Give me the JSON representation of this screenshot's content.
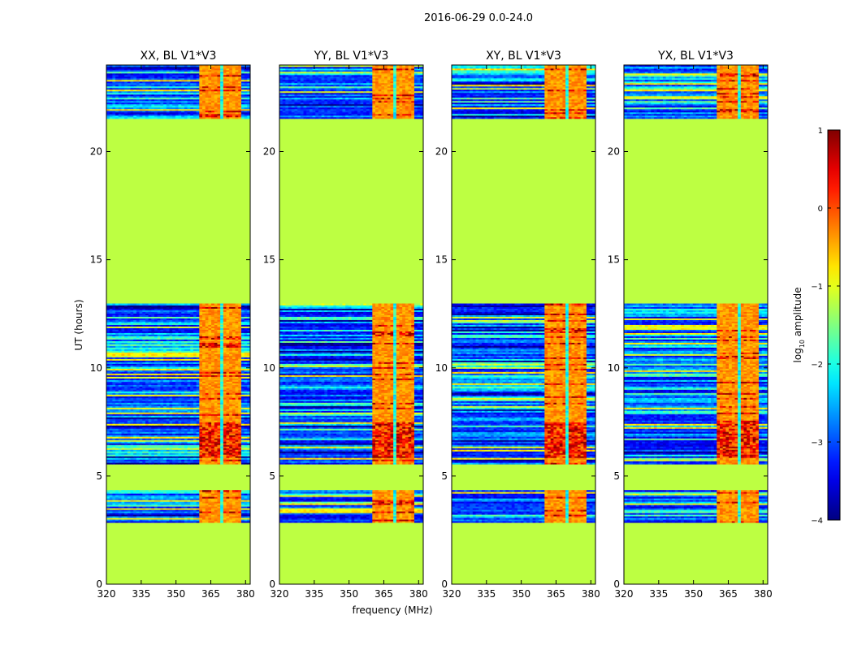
{
  "chart_data": {
    "type": "heatmap",
    "suptitle": "2016-06-29 0.0-24.0",
    "xlabel": "frequency (MHz)",
    "ylabel": "UT (hours)",
    "xlim": [
      320,
      382
    ],
    "ylim": [
      0,
      24
    ],
    "xticks": [
      320,
      335,
      350,
      365,
      380
    ],
    "yticks": [
      0,
      5,
      10,
      15,
      20
    ],
    "panels": [
      {
        "title": "XX, BL V1*V3",
        "seed": 11
      },
      {
        "title": "YY, BL V1*V3",
        "seed": 23
      },
      {
        "title": "XY, BL V1*V3",
        "seed": 37
      },
      {
        "title": "YX, BL V1*V3",
        "seed": 53
      }
    ],
    "masked_value": -1.2,
    "data_blocks_ut": [
      [
        2.85,
        4.3
      ],
      [
        5.5,
        12.9
      ],
      [
        21.5,
        24.0
      ]
    ],
    "bright_channel_range_mhz": [
      360,
      378
    ],
    "bright_channel_columns_mhz": [
      [
        360,
        364
      ],
      [
        365,
        368.5
      ],
      [
        369.5,
        373
      ],
      [
        374,
        378
      ]
    ],
    "colorbar": {
      "label": "log",
      "label_sub": "10",
      "label_rest": " amplitude",
      "min": -4,
      "max": 1,
      "ticks": [
        1,
        0,
        -1,
        -2,
        -3,
        -4
      ],
      "ticklabels": [
        "1",
        "0",
        "−1",
        "−2",
        "−3",
        "−4"
      ],
      "colormap": "jet"
    }
  }
}
